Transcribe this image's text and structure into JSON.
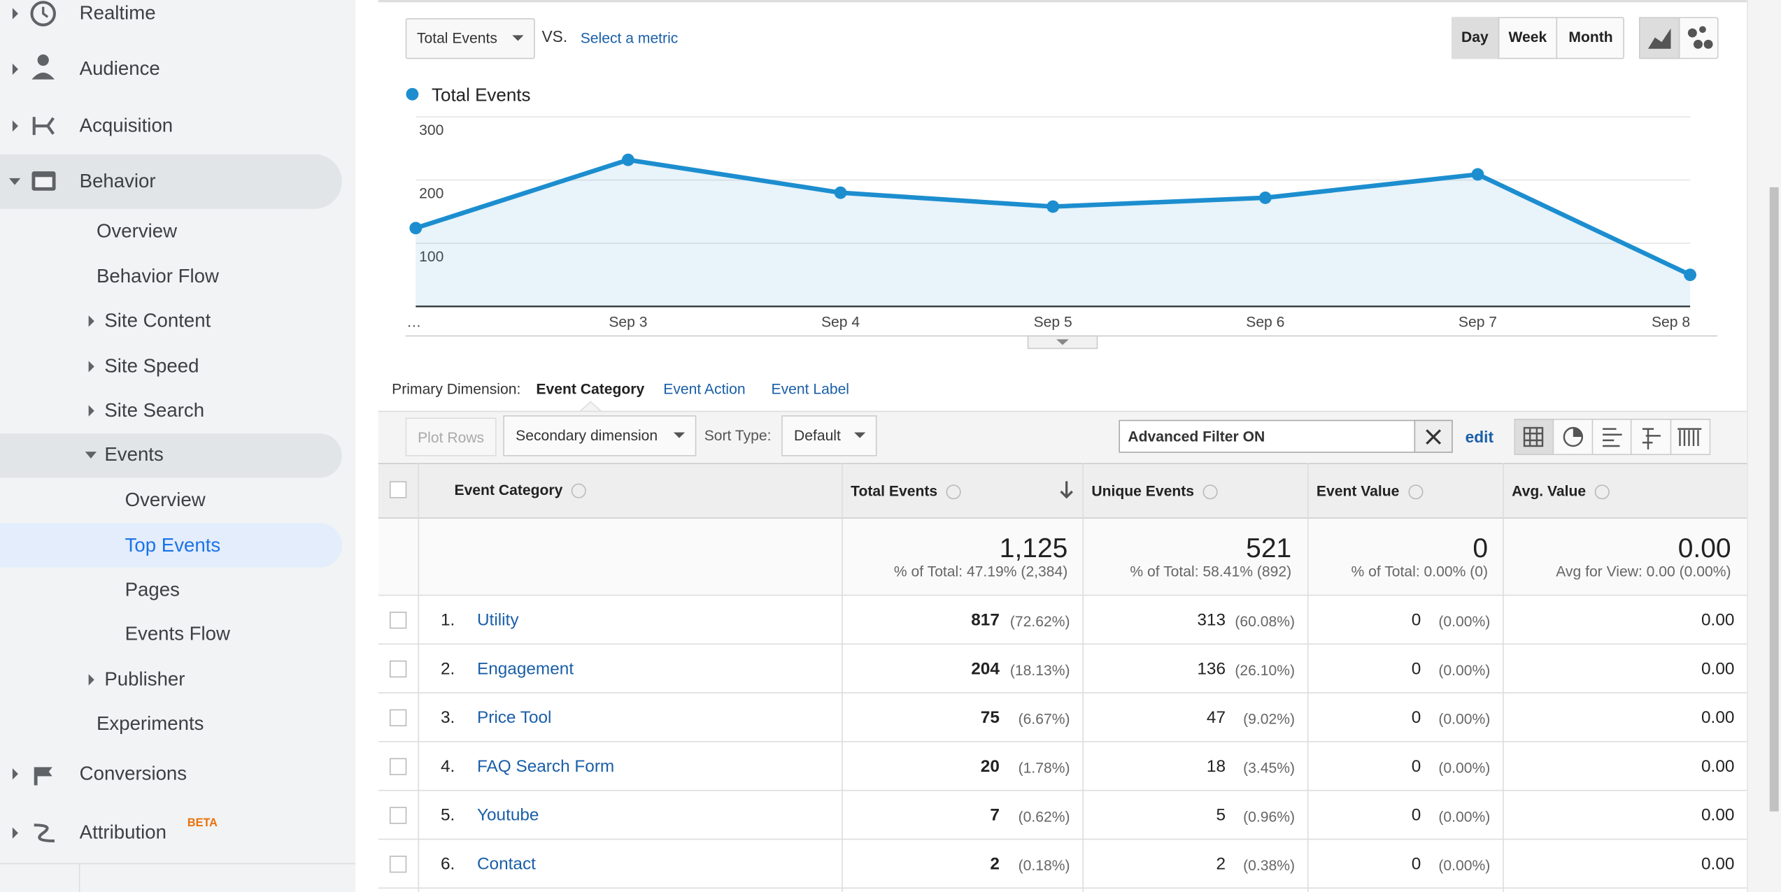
{
  "sidebar": {
    "realtime": "Realtime",
    "audience": "Audience",
    "acquisition": "Acquisition",
    "behavior": "Behavior",
    "behavior_items": [
      "Overview",
      "Behavior Flow",
      "Site Content",
      "Site Speed",
      "Site Search",
      "Events"
    ],
    "events_items": [
      "Overview",
      "Top Events",
      "Pages",
      "Events Flow"
    ],
    "publisher": "Publisher",
    "experiments": "Experiments",
    "conversions": "Conversions",
    "attribution": "Attribution",
    "beta": "BETA"
  },
  "controls": {
    "metric": "Total Events",
    "vs": "VS.",
    "select_metric": "Select a metric",
    "periods": [
      "Day",
      "Week",
      "Month"
    ]
  },
  "chart_data": {
    "type": "line",
    "categories": [
      "…",
      "Sep 3",
      "Sep 4",
      "Sep 5",
      "Sep 6",
      "Sep 7",
      "Sep 8"
    ],
    "series": [
      {
        "name": "Total Events",
        "color": "#1c8ecf",
        "values": [
          124,
          232,
          180,
          158,
          172,
          209,
          50
        ]
      }
    ],
    "ylim": [
      0,
      300
    ],
    "yticks": [
      100,
      200,
      300
    ],
    "grid": true
  },
  "dimension": {
    "label": "Primary Dimension:",
    "options": [
      "Event Category",
      "Event Action",
      "Event Label"
    ]
  },
  "toolbar": {
    "plot_rows": "Plot Rows",
    "secondary": "Secondary dimension",
    "sort_type": "Sort Type:",
    "sort_default": "Default",
    "filter": "Advanced Filter ON",
    "edit": "edit"
  },
  "table": {
    "columns": [
      "Event Category",
      "Total Events",
      "Unique Events",
      "Event Value",
      "Avg. Value"
    ],
    "totals": [
      {
        "value": "1,125",
        "note": "% of Total: 47.19% (2,384)"
      },
      {
        "value": "521",
        "note": "% of Total: 58.41% (892)"
      },
      {
        "value": "0",
        "note": "% of Total: 0.00% (0)"
      },
      {
        "value": "0.00",
        "note": "Avg for View: 0.00 (0.00%)"
      }
    ],
    "rows": [
      {
        "rank": "1.",
        "category": "Utility",
        "total": "817",
        "total_pct": "(72.62%)",
        "unique": "313",
        "unique_pct": "(60.08%)",
        "value": "0",
        "value_pct": "(0.00%)",
        "avg": "0.00"
      },
      {
        "rank": "2.",
        "category": "Engagement",
        "total": "204",
        "total_pct": "(18.13%)",
        "unique": "136",
        "unique_pct": "(26.10%)",
        "value": "0",
        "value_pct": "(0.00%)",
        "avg": "0.00"
      },
      {
        "rank": "3.",
        "category": "Price Tool",
        "total": "75",
        "total_pct": "(6.67%)",
        "unique": "47",
        "unique_pct": "(9.02%)",
        "value": "0",
        "value_pct": "(0.00%)",
        "avg": "0.00"
      },
      {
        "rank": "4.",
        "category": "FAQ Search Form",
        "total": "20",
        "total_pct": "(1.78%)",
        "unique": "18",
        "unique_pct": "(3.45%)",
        "value": "0",
        "value_pct": "(0.00%)",
        "avg": "0.00"
      },
      {
        "rank": "5.",
        "category": "Youtube",
        "total": "7",
        "total_pct": "(0.62%)",
        "unique": "5",
        "unique_pct": "(0.96%)",
        "value": "0",
        "value_pct": "(0.00%)",
        "avg": "0.00"
      },
      {
        "rank": "6.",
        "category": "Contact",
        "total": "2",
        "total_pct": "(0.18%)",
        "unique": "2",
        "unique_pct": "(0.38%)",
        "value": "0",
        "value_pct": "(0.00%)",
        "avg": "0.00"
      }
    ]
  }
}
